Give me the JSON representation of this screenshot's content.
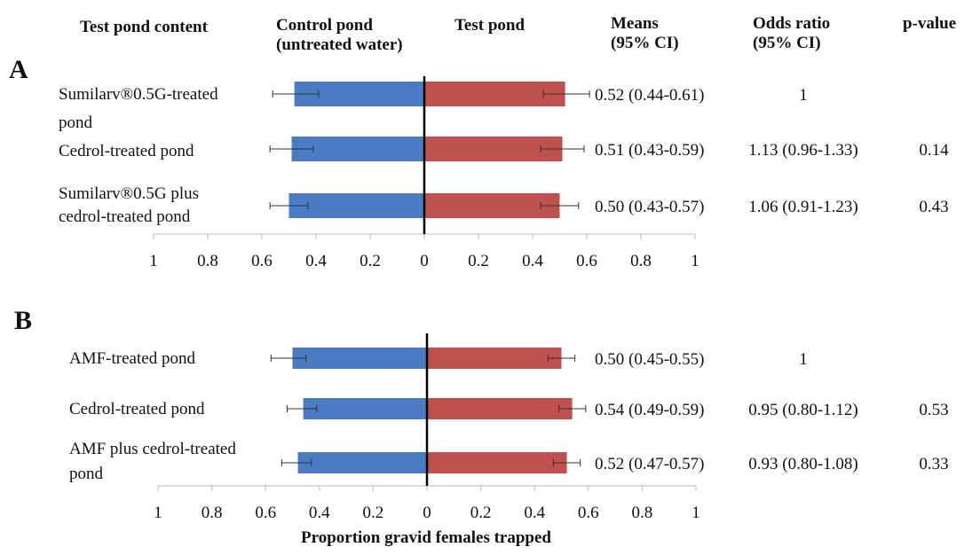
{
  "headers": {
    "content": "Test pond content",
    "control": "Control pond\n(untreated water)",
    "test": "Test pond",
    "means": "Means\n(95% CI)",
    "odds": "Odds ratio\n(95% CI)",
    "pvalue": "p-value"
  },
  "colors": {
    "control": "#4a7cc3",
    "test": "#c0504d"
  },
  "chart_data": [
    {
      "type": "bar",
      "panel": "A",
      "orientation": "horizontal-diverging",
      "xlabel": "",
      "xlim": [
        -1,
        1
      ],
      "ticks": [
        "1",
        "0.8",
        "0.6",
        "0.4",
        "0.2",
        "0",
        "0.2",
        "0.4",
        "0.6",
        "0.8",
        "1"
      ],
      "categories": [
        "Sumilarv®0.5G-treated pond",
        "Cedrol-treated pond",
        "Sumilarv®0.5G plus cedrol-treated pond"
      ],
      "series": [
        {
          "name": "Control pond (untreated water)",
          "values": [
            0.48,
            0.49,
            0.5
          ],
          "err_low": [
            0.39,
            0.41,
            0.43
          ],
          "err_high": [
            0.56,
            0.57,
            0.57
          ]
        },
        {
          "name": "Test pond",
          "values": [
            0.52,
            0.51,
            0.5
          ],
          "err_low": [
            0.44,
            0.43,
            0.43
          ],
          "err_high": [
            0.61,
            0.59,
            0.57
          ]
        }
      ],
      "means": [
        "0.52 (0.44-0.61)",
        "0.51 (0.43-0.59)",
        "0.50 (0.43-0.57)"
      ],
      "odds": [
        "1",
        "1.13 (0.96-1.33)",
        "1.06 (0.91-1.23)"
      ],
      "pvalues": [
        "",
        "0.14",
        "0.43"
      ]
    },
    {
      "type": "bar",
      "panel": "B",
      "orientation": "horizontal-diverging",
      "xlabel": "Proportion gravid females trapped",
      "xlim": [
        -1,
        1
      ],
      "ticks": [
        "1",
        "0.8",
        "0.6",
        "0.4",
        "0.2",
        "0",
        "0.2",
        "0.4",
        "0.6",
        "0.8",
        "1"
      ],
      "categories": [
        "AMF-treated pond",
        "Cedrol-treated pond",
        "AMF plus cedrol-treated pond"
      ],
      "series": [
        {
          "name": "Control pond (untreated water)",
          "values": [
            0.5,
            0.46,
            0.48
          ],
          "err_low": [
            0.45,
            0.41,
            0.43
          ],
          "err_high": [
            0.58,
            0.52,
            0.54
          ]
        },
        {
          "name": "Test pond",
          "values": [
            0.5,
            0.54,
            0.52
          ],
          "err_low": [
            0.45,
            0.49,
            0.47
          ],
          "err_high": [
            0.55,
            0.59,
            0.57
          ]
        }
      ],
      "means": [
        "0.50 (0.45-0.55)",
        "0.54 (0.49-0.59)",
        "0.52 (0.47-0.57)"
      ],
      "odds": [
        "1",
        "0.95 (0.80-1.12)",
        "0.93 (0.80-1.08)"
      ],
      "pvalues": [
        "",
        "0.53",
        "0.33"
      ]
    }
  ]
}
